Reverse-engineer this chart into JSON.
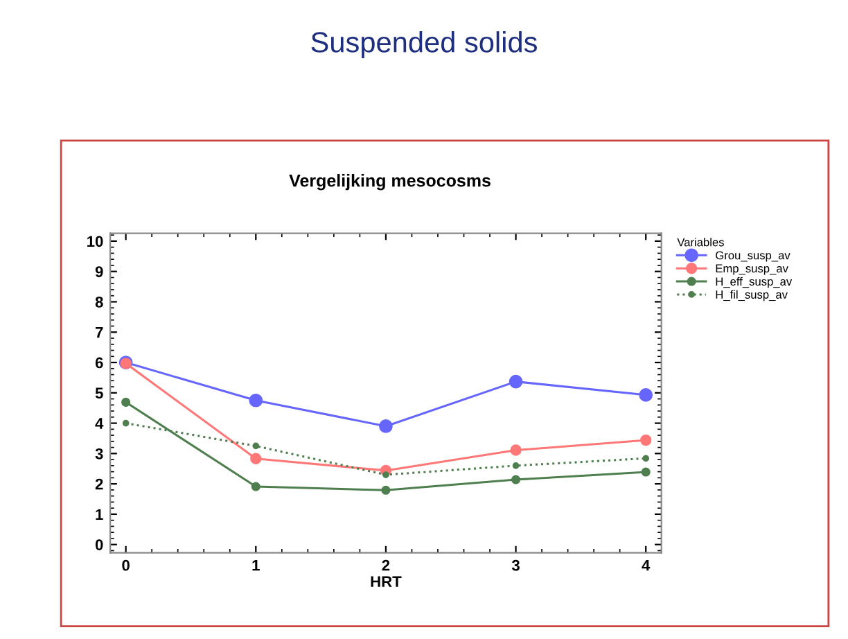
{
  "chart_data": {
    "type": "line",
    "title": "Suspended solids",
    "subtitle": "Vergelijking mesocosms",
    "xlabel": "HRT",
    "legend_title": "Variables",
    "legend": "right",
    "marker": "circle",
    "grid": false,
    "x": [
      0,
      1,
      2,
      3,
      4
    ],
    "xlim": [
      -0.12,
      4.12
    ],
    "xticks": [
      0,
      1,
      2,
      3,
      4
    ],
    "ylim": [
      -0.27,
      10.26
    ],
    "yticks": [
      0,
      1,
      2,
      3,
      4,
      5,
      6,
      7,
      8,
      9,
      10
    ],
    "series": [
      {
        "name": "Grou_susp_av",
        "color": "#6666ff",
        "line_style": "solid",
        "values": [
          6.0,
          4.75,
          3.9,
          5.37,
          4.93
        ]
      },
      {
        "name": "Emp_susp_av",
        "color": "#ff7777",
        "line_style": "solid",
        "values": [
          5.97,
          2.83,
          2.44,
          3.11,
          3.44
        ]
      },
      {
        "name": "H_eff_susp_av",
        "color": "#4f7f4f",
        "line_style": "solid",
        "values": [
          4.69,
          1.91,
          1.79,
          2.14,
          2.39
        ]
      },
      {
        "name": "H_fil_susp_av",
        "color": "#4f7f4f",
        "line_style": "dotted",
        "values": [
          4.0,
          3.25,
          2.3,
          2.6,
          2.84
        ]
      }
    ]
  }
}
